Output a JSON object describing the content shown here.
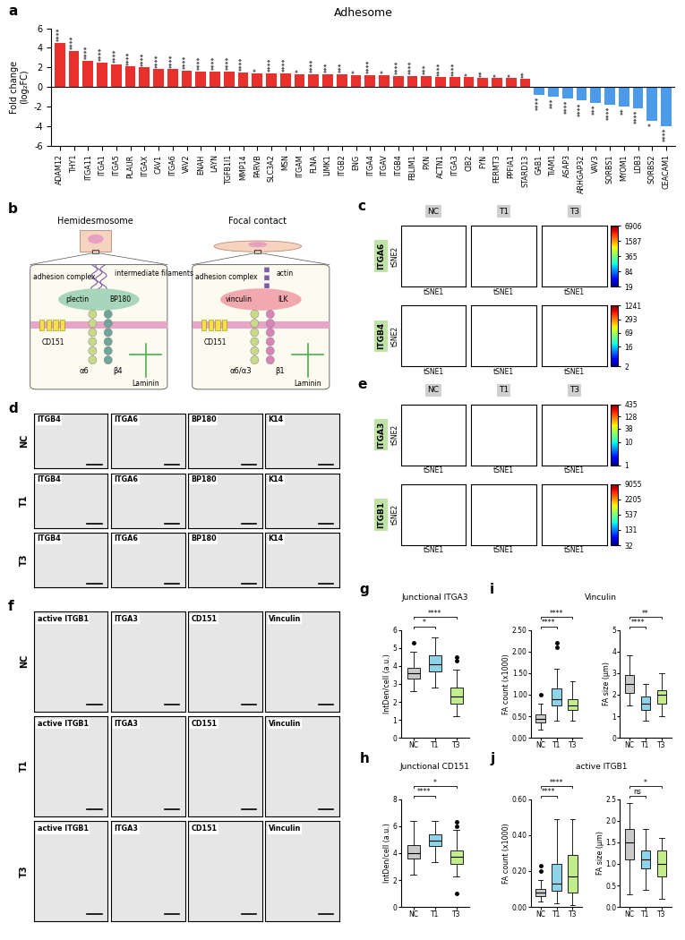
{
  "chart_data": [
    {
      "type": "bar",
      "panel": "a",
      "title": "Adhesome",
      "y_label": "Fold change\n(log₂FC)",
      "categories": [
        "ADAM12",
        "THY1",
        "ITGA11",
        "ITGA1",
        "ITGA5",
        "PLAUR",
        "ITGAX",
        "CAV1",
        "ITGA6",
        "VAV2",
        "ENAH",
        "LAYN",
        "TGFB1I1",
        "MMP14",
        "PARVB",
        "SLC3A2",
        "MSN",
        "ITGAM",
        "FLNA",
        "LIMK1",
        "ITGB2",
        "ENG",
        "ITGA4",
        "ITGAV",
        "ITGB4",
        "FBLIM1",
        "PXN",
        "ACTN1",
        "ITGA3",
        "CIB2",
        "FYN",
        "FERMT3",
        "PPFIA1",
        "STARD13",
        "GAB1",
        "TIAM1",
        "ASAP3",
        "ARHGAP32",
        "VAV3",
        "SORBS1",
        "MYOM1",
        "LDB3",
        "SORBS2",
        "CEACAM1"
      ],
      "values": [
        4.5,
        3.7,
        2.7,
        2.5,
        2.3,
        2.1,
        2.0,
        1.8,
        1.8,
        1.7,
        1.6,
        1.6,
        1.6,
        1.5,
        1.4,
        1.4,
        1.4,
        1.3,
        1.3,
        1.3,
        1.3,
        1.2,
        1.2,
        1.2,
        1.1,
        1.1,
        1.1,
        1.0,
        1.0,
        1.0,
        0.9,
        0.9,
        0.9,
        0.8,
        -0.8,
        -1.0,
        -1.2,
        -1.4,
        -1.6,
        -1.8,
        -2.0,
        -2.2,
        -3.5,
        -4.0
      ],
      "significance": [
        "****",
        "****",
        "****",
        "****",
        "****",
        "****",
        "****",
        "****",
        "****",
        "****",
        "****",
        "****",
        "****",
        "****",
        "*",
        "****",
        "****",
        "*",
        "****",
        "***",
        "***",
        "*",
        "****",
        "*",
        "****",
        "****",
        "***",
        "****",
        "****",
        "*",
        "**",
        "*",
        "*",
        "**",
        "****",
        "***",
        "****",
        "****",
        "***",
        "****",
        "**",
        "****",
        "*",
        "****"
      ],
      "colors": [
        "#e8302c",
        "#e8302c",
        "#e8302c",
        "#e8302c",
        "#e8302c",
        "#e8302c",
        "#e8302c",
        "#e8302c",
        "#e8302c",
        "#e8302c",
        "#e8302c",
        "#e8302c",
        "#e8302c",
        "#e8302c",
        "#e8302c",
        "#e8302c",
        "#e8302c",
        "#e8302c",
        "#e8302c",
        "#e8302c",
        "#e8302c",
        "#e8302c",
        "#e8302c",
        "#e8302c",
        "#e8302c",
        "#e8302c",
        "#e8302c",
        "#e8302c",
        "#e8302c",
        "#e8302c",
        "#e8302c",
        "#e8302c",
        "#e8302c",
        "#e8302c",
        "#4c9be8",
        "#4c9be8",
        "#4c9be8",
        "#4c9be8",
        "#4c9be8",
        "#4c9be8",
        "#4c9be8",
        "#4c9be8",
        "#4c9be8",
        "#4c9be8"
      ],
      "ylim": [
        -6,
        6
      ],
      "yticks": [
        -6,
        -4,
        -2,
        0,
        2,
        4,
        6
      ]
    },
    {
      "type": "box",
      "panel": "g",
      "title": "Junctional ITGA3",
      "y_label": "IntDen/cell (a.u.)",
      "categories": [
        "NC",
        "T1",
        "T3"
      ],
      "colors": [
        "#c9c9c9",
        "#8fd3ea",
        "#c3ec8b"
      ],
      "median": [
        3.6,
        4.1,
        2.3
      ],
      "q1": [
        3.3,
        3.7,
        1.9
      ],
      "q3": [
        3.9,
        4.6,
        2.8
      ],
      "whisker_low": [
        2.6,
        2.8,
        1.2
      ],
      "whisker_high": [
        4.8,
        5.6,
        3.8
      ],
      "outliers": [
        [
          5.3
        ],
        [],
        [
          4.3,
          4.5
        ]
      ],
      "comparisons": [
        {
          "pair": [
            "NC",
            "T1"
          ],
          "label": "*"
        },
        {
          "pair": [
            "NC",
            "T3"
          ],
          "label": "****"
        }
      ],
      "ylim": [
        0,
        6
      ],
      "yticks": [
        0,
        1,
        2,
        3,
        4,
        5,
        6
      ]
    },
    {
      "type": "box",
      "panel": "h",
      "title": "Junctional CD151",
      "y_label": "IntDen/cell (a.u.)",
      "categories": [
        "NC",
        "T1",
        "T3"
      ],
      "colors": [
        "#c9c9c9",
        "#8fd3ea",
        "#c3ec8b"
      ],
      "median": [
        4.0,
        4.9,
        3.7
      ],
      "q1": [
        3.6,
        4.5,
        3.2
      ],
      "q3": [
        4.6,
        5.4,
        4.2
      ],
      "whisker_low": [
        2.4,
        3.3,
        2.3
      ],
      "whisker_high": [
        6.4,
        6.4,
        5.7
      ],
      "outliers": [
        [],
        [],
        [
          6.0,
          6.3,
          1.0
        ]
      ],
      "comparisons": [
        {
          "pair": [
            "NC",
            "T1"
          ],
          "label": "****"
        },
        {
          "pair": [
            "NC",
            "T3"
          ],
          "label": "*"
        }
      ],
      "ylim": [
        0,
        8
      ],
      "yticks": [
        0,
        2,
        4,
        6,
        8
      ]
    },
    {
      "type": "box",
      "panel": "i",
      "title": "Vinculin",
      "y_label": "FA count (x1000)",
      "categories": [
        "NC",
        "T1",
        "T3"
      ],
      "colors": [
        "#c9c9c9",
        "#8fd3ea",
        "#c3ec8b"
      ],
      "median": [
        0.45,
        0.9,
        0.75
      ],
      "q1": [
        0.35,
        0.75,
        0.65
      ],
      "q3": [
        0.55,
        1.15,
        0.9
      ],
      "whisker_low": [
        0.2,
        0.4,
        0.4
      ],
      "whisker_high": [
        0.8,
        1.6,
        1.3
      ],
      "outliers": [
        [
          1.0
        ],
        [
          2.1,
          2.2
        ],
        []
      ],
      "comparisons": [
        {
          "pair": [
            "NC",
            "T1"
          ],
          "label": "****"
        },
        {
          "pair": [
            "NC",
            "T3"
          ],
          "label": "****"
        }
      ],
      "ylim": [
        0,
        2.5
      ],
      "yticks": [
        {
          "value": 0,
          "label": "0.00"
        },
        {
          "value": 0.5,
          "label": "0.50"
        },
        {
          "value": 1,
          "label": "1.00"
        },
        {
          "value": 1.5,
          "label": "1.50"
        },
        {
          "value": 2,
          "label": "2.00"
        },
        {
          "value": 2.5,
          "label": "2.50"
        }
      ]
    },
    {
      "type": "box",
      "y_label": "FA size (µm)",
      "categories": [
        "NC",
        "T1",
        "T3"
      ],
      "colors": [
        "#c9c9c9",
        "#8fd3ea",
        "#c3ec8b"
      ],
      "median": [
        2.5,
        1.6,
        2.0
      ],
      "q1": [
        2.1,
        1.3,
        1.6
      ],
      "q3": [
        2.9,
        1.9,
        2.2
      ],
      "whisker_low": [
        1.5,
        0.8,
        1.0
      ],
      "whisker_high": [
        3.8,
        2.5,
        3.0
      ],
      "outliers": [
        [],
        [],
        []
      ],
      "comparisons": [
        {
          "pair": [
            "NC",
            "T1"
          ],
          "label": "****"
        },
        {
          "pair": [
            "NC",
            "T3"
          ],
          "label": "**"
        }
      ],
      "ylim": [
        0,
        5
      ],
      "yticks": [
        0,
        1,
        2,
        3,
        4,
        5
      ]
    },
    {
      "type": "box",
      "panel": "j",
      "title": "active ITGB1",
      "y_label": "FA count (x1000)",
      "categories": [
        "NC",
        "T1",
        "T3"
      ],
      "colors": [
        "#c9c9c9",
        "#8fd3ea",
        "#c3ec8b"
      ],
      "median": [
        0.08,
        0.13,
        0.17
      ],
      "q1": [
        0.06,
        0.09,
        0.08
      ],
      "q3": [
        0.1,
        0.24,
        0.29
      ],
      "whisker_low": [
        0.03,
        0.02,
        0.01
      ],
      "whisker_high": [
        0.15,
        0.49,
        0.49
      ],
      "outliers": [
        [
          0.2,
          0.23
        ],
        [],
        []
      ],
      "comparisons": [
        {
          "pair": [
            "NC",
            "T1"
          ],
          "label": "****"
        },
        {
          "pair": [
            "NC",
            "T3"
          ],
          "label": "****"
        }
      ],
      "ylim": [
        0,
        0.6
      ],
      "yticks": [
        {
          "value": 0,
          "label": "0.00"
        },
        {
          "value": 0.2,
          "label": "0.20"
        },
        {
          "value": 0.4,
          "label": "0.40"
        },
        {
          "value": 0.6,
          "label": "0.60"
        }
      ]
    },
    {
      "type": "box",
      "y_label": "FA size (µm)",
      "categories": [
        "NC",
        "T1",
        "T3"
      ],
      "colors": [
        "#c9c9c9",
        "#8fd3ea",
        "#c3ec8b"
      ],
      "median": [
        1.5,
        1.1,
        1.0
      ],
      "q1": [
        1.1,
        0.9,
        0.7
      ],
      "q3": [
        1.8,
        1.3,
        1.3
      ],
      "whisker_low": [
        0.3,
        0.4,
        0.2
      ],
      "whisker_high": [
        2.4,
        1.8,
        1.6
      ],
      "outliers": [
        [],
        [],
        []
      ],
      "comparisons": [
        {
          "pair": [
            "NC",
            "T1"
          ],
          "label": "ns"
        },
        {
          "pair": [
            "NC",
            "T3"
          ],
          "label": "*"
        }
      ],
      "ylim": [
        0,
        2.5
      ],
      "yticks": [
        {
          "value": 0,
          "label": "0.0"
        },
        {
          "value": 0.5,
          "label": "0.5"
        },
        {
          "value": 1,
          "label": "1.0"
        },
        {
          "value": 1.5,
          "label": "1.5"
        },
        {
          "value": 2,
          "label": "2.0"
        },
        {
          "value": 2.5,
          "label": "2.5"
        }
      ]
    }
  ],
  "diagram": {
    "panel": "b",
    "sides": [
      {
        "title": "Hemidesmosome",
        "complex": "adhesion complex",
        "filament": "intermediate filaments",
        "proteins": [
          "plectin",
          "BP180"
        ],
        "tetraspanin": "CD151",
        "alpha": "α6",
        "beta": "β4",
        "ligand": "Laminin"
      },
      {
        "title": "Focal contact",
        "complex": "adhesion complex",
        "filament": "actin",
        "proteins": [
          "vinculin",
          "ILK"
        ],
        "tetraspanin": "CD151",
        "alpha": "α6/α3",
        "beta": "β1",
        "ligand": "Laminin"
      }
    ]
  },
  "tsne": [
    {
      "panel": "c",
      "columns": [
        "NC",
        "T1",
        "T3"
      ],
      "x_label": "tSNE1",
      "y_label": "tSNE2",
      "rows": [
        {
          "marker": "ITGA6",
          "color_range": [
            19,
            6906
          ],
          "color_ticks": [
            19,
            84,
            365,
            1587,
            6906
          ]
        },
        {
          "marker": "ITGB4",
          "color_range": [
            2,
            1241
          ],
          "color_ticks": [
            2,
            16,
            69,
            293,
            1241
          ]
        }
      ]
    },
    {
      "panel": "e",
      "columns": [
        "NC",
        "T1",
        "T3"
      ],
      "x_label": "tSNE1",
      "y_label": "tSNE2",
      "rows": [
        {
          "marker": "ITGA3",
          "color_range": [
            1,
            435
          ],
          "color_ticks": [
            1,
            10,
            38,
            128,
            435
          ]
        },
        {
          "marker": "ITGB1",
          "color_range": [
            32,
            9055
          ],
          "color_ticks": [
            32,
            131,
            537,
            2205,
            9055
          ]
        }
      ]
    }
  ],
  "micrographs": [
    {
      "panel": "d",
      "rows": [
        "NC",
        "T1",
        "T3"
      ],
      "columns": [
        "ITGB4",
        "ITGA6",
        "BP180",
        "K14"
      ]
    },
    {
      "panel": "f",
      "rows": [
        "NC",
        "T1",
        "T3"
      ],
      "columns": [
        "active ITGB1",
        "ITGA3",
        "CD151",
        "Vinculin"
      ]
    }
  ]
}
